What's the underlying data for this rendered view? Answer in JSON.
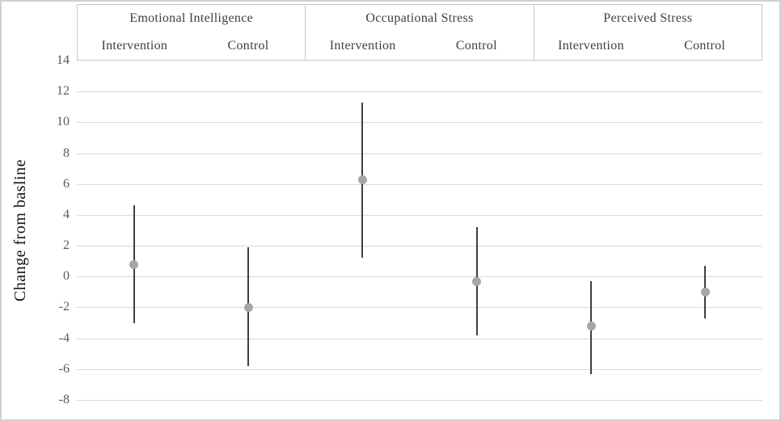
{
  "header": {
    "groups": [
      {
        "label": "Emotional Intelligence",
        "sub_labels": [
          "Intervention",
          "Control"
        ]
      },
      {
        "label": "Occupational Stress",
        "sub_labels": [
          "Intervention",
          "Control"
        ]
      },
      {
        "label": "Perceived Stress",
        "sub_labels": [
          "Intervention",
          "Control"
        ]
      }
    ]
  },
  "chart_data": {
    "type": "scatter",
    "title": "",
    "xlabel": "",
    "ylabel": "Change from basline",
    "ylim": [
      -8,
      14
    ],
    "y_tick_step": 2,
    "y_tick_labels": [
      "14",
      "12",
      "10",
      "8",
      "6",
      "4",
      "2",
      "0",
      "-2",
      "-4",
      "-6",
      "-8"
    ],
    "grid": true,
    "legend": "none",
    "marker": "filled-circle-with-vertical-error-bar",
    "categories": [
      "Emotional Intelligence - Intervention",
      "Emotional Intelligence - Control",
      "Occupational Stress - Intervention",
      "Occupational Stress - Control",
      "Perceived Stress - Intervention",
      "Perceived Stress - Control"
    ],
    "points": [
      {
        "group": "Emotional Intelligence",
        "condition": "Intervention",
        "value": 0.8,
        "ci_low": -3.0,
        "ci_high": 4.6
      },
      {
        "group": "Emotional Intelligence",
        "condition": "Control",
        "value": -2.0,
        "ci_low": -5.8,
        "ci_high": 1.9
      },
      {
        "group": "Occupational Stress",
        "condition": "Intervention",
        "value": 6.3,
        "ci_low": 1.2,
        "ci_high": 11.3
      },
      {
        "group": "Occupational Stress",
        "condition": "Control",
        "value": -0.3,
        "ci_low": -3.8,
        "ci_high": 3.2
      },
      {
        "group": "Perceived Stress",
        "condition": "Intervention",
        "value": -3.2,
        "ci_low": -6.3,
        "ci_high": -0.3
      },
      {
        "group": "Perceived Stress",
        "condition": "Control",
        "value": -1.0,
        "ci_low": -2.7,
        "ci_high": 0.7
      }
    ]
  },
  "colors": {
    "point": "#a6a6a6",
    "error_bar": "#3f3f3f",
    "gridline": "#d9d9d9",
    "frame_border": "#c9c9c9",
    "outer_border": "#d0d0d0",
    "tick_label": "#595959",
    "header_label": "#3f3f3f",
    "axis_title": "#111111"
  }
}
